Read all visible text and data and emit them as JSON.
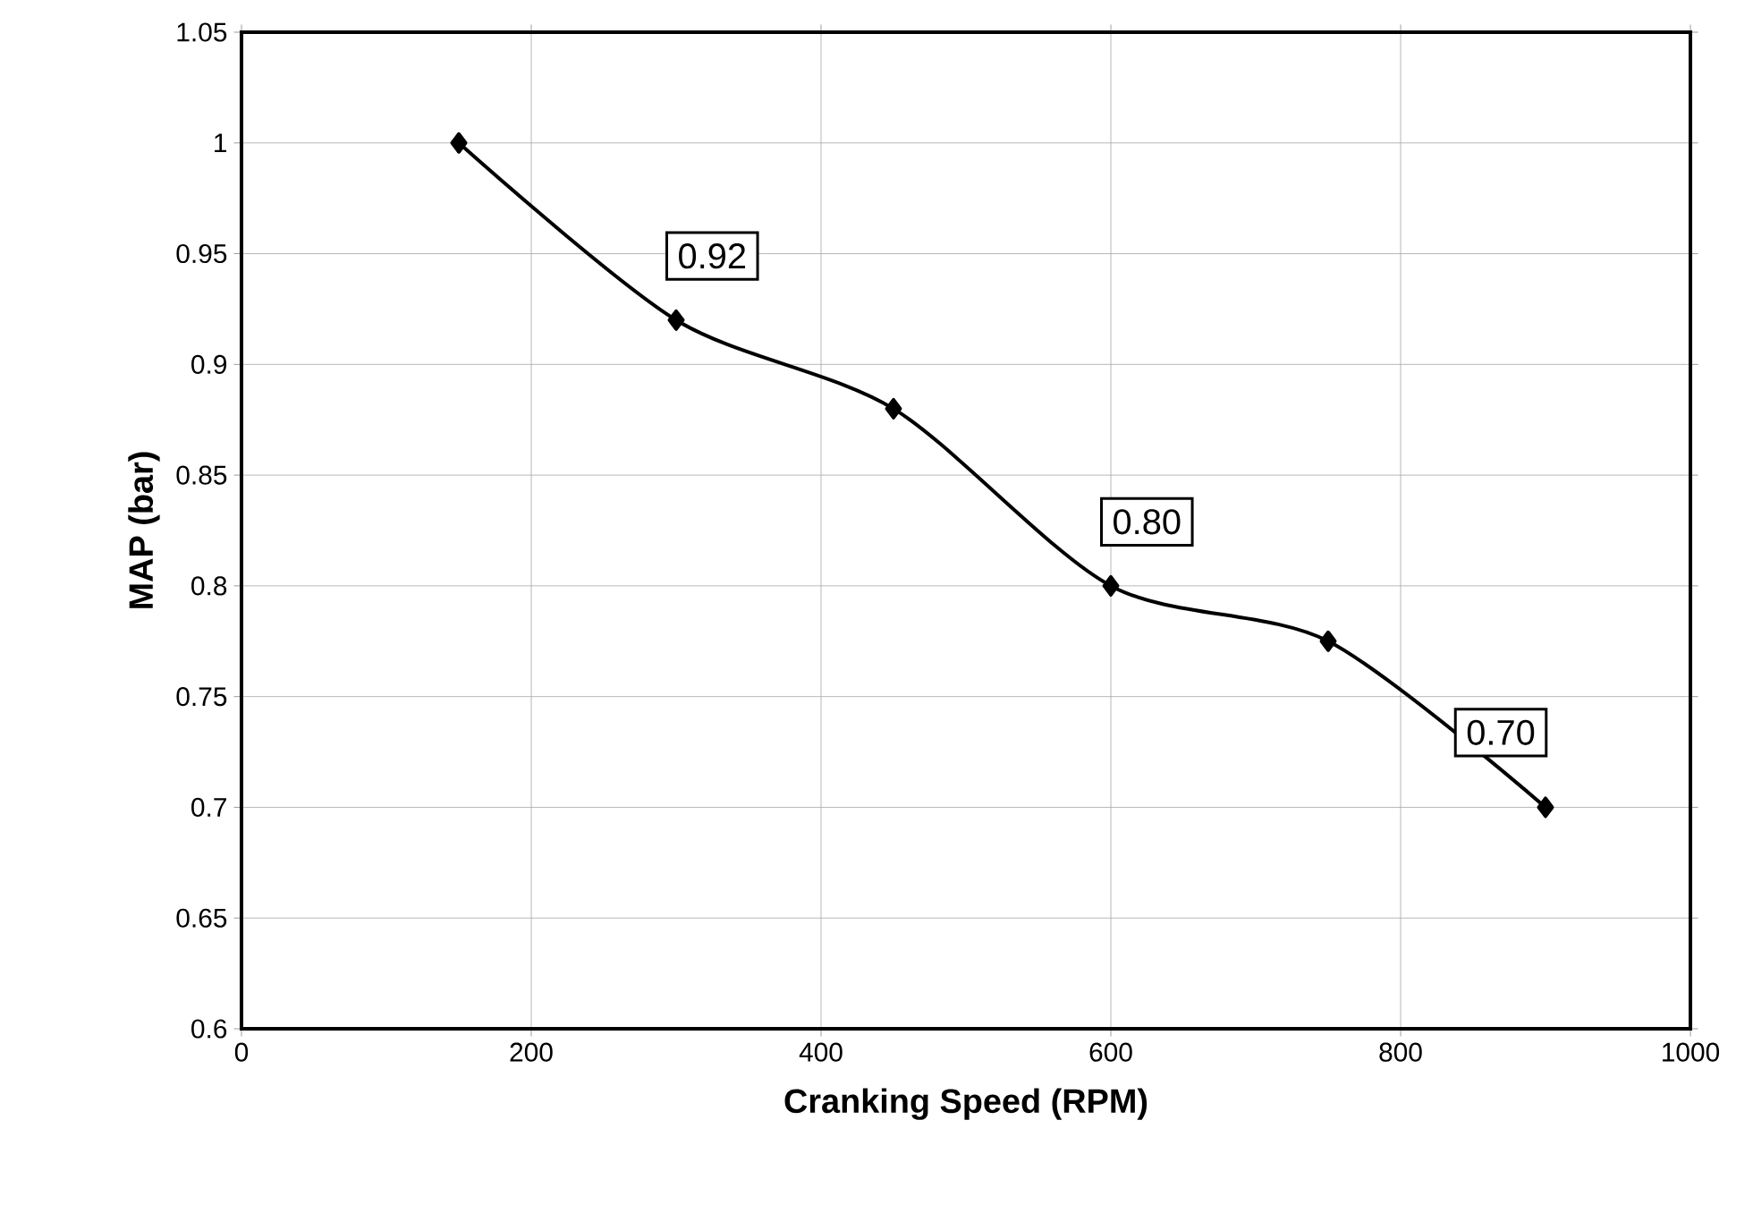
{
  "chart_data": {
    "type": "line",
    "xlabel": "Cranking Speed (RPM)",
    "ylabel": "MAP (bar)",
    "x": [
      150,
      300,
      450,
      600,
      750,
      900
    ],
    "values": [
      1.0,
      0.92,
      0.88,
      0.8,
      0.775,
      0.7
    ],
    "value_labels": [
      null,
      "0.92",
      null,
      "0.80",
      null,
      "0.70"
    ],
    "color": "#000000",
    "marker": "diamond",
    "line_style": "solid",
    "grid": true,
    "xlim": [
      0,
      1000
    ],
    "xticks": [
      0,
      200,
      400,
      600,
      800,
      1000
    ],
    "ylim": [
      0.6,
      1.05
    ],
    "yticks": [
      {
        "value": 0.6,
        "label": "0.6"
      },
      {
        "value": 0.65,
        "label": "0.65"
      },
      {
        "value": 0.7,
        "label": "0.7"
      },
      {
        "value": 0.75,
        "label": "0.75"
      },
      {
        "value": 0.8,
        "label": "0.8"
      },
      {
        "value": 0.85,
        "label": "0.85"
      },
      {
        "value": 0.9,
        "label": "0.9"
      },
      {
        "value": 0.95,
        "label": "0.95"
      },
      {
        "value": 1,
        "label": "1"
      },
      {
        "value": 1.05,
        "label": "1.05"
      }
    ]
  }
}
